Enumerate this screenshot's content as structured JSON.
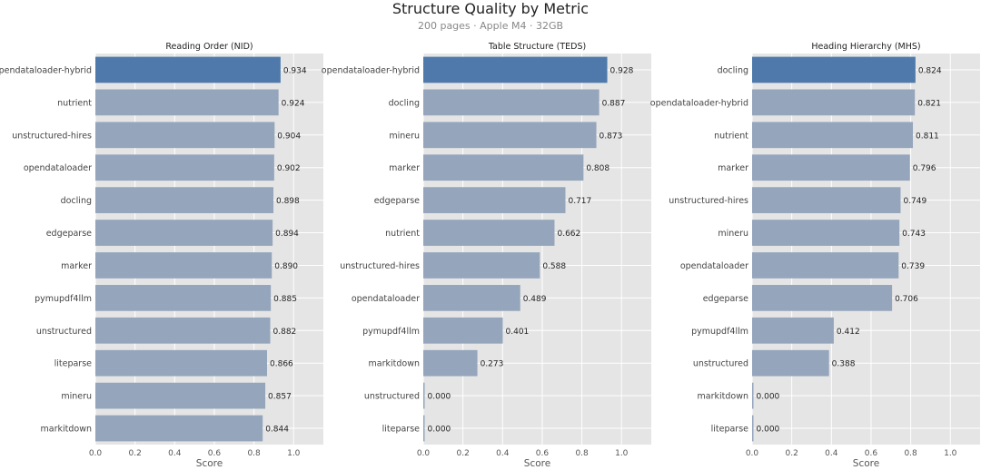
{
  "figure": {
    "title": "Structure Quality by Metric",
    "subtitle": "200 pages · Apple M4 · 32GB"
  },
  "colors": {
    "highlight": "#4e79aa",
    "bar": "#95a5bc",
    "panel_background": "#e5e5e5",
    "grid": "#ffffff"
  },
  "chart_data": [
    {
      "type": "bar",
      "orientation": "horizontal",
      "title": "Reading Order (NID)",
      "xlabel": "Score",
      "xlim": [
        0,
        1.15
      ],
      "xticks": [
        "0.0",
        "0.2",
        "0.4",
        "0.6",
        "0.8",
        "1.0"
      ],
      "grid": true,
      "categories": [
        "opendataloader-hybrid",
        "nutrient",
        "unstructured-hires",
        "opendataloader",
        "docling",
        "edgeparse",
        "marker",
        "pymupdf4llm",
        "unstructured",
        "liteparse",
        "mineru",
        "markitdown"
      ],
      "values": [
        0.934,
        0.924,
        0.904,
        0.902,
        0.898,
        0.894,
        0.89,
        0.885,
        0.882,
        0.866,
        0.857,
        0.844
      ],
      "labels": [
        "0.934",
        "0.924",
        "0.904",
        "0.902",
        "0.898",
        "0.894",
        "0.890",
        "0.885",
        "0.882",
        "0.866",
        "0.857",
        "0.844"
      ],
      "highlight_index": 0
    },
    {
      "type": "bar",
      "orientation": "horizontal",
      "title": "Table Structure (TEDS)",
      "xlabel": "Score",
      "xlim": [
        0,
        1.15
      ],
      "xticks": [
        "0.0",
        "0.2",
        "0.4",
        "0.6",
        "0.8",
        "1.0"
      ],
      "grid": true,
      "categories": [
        "opendataloader-hybrid",
        "docling",
        "mineru",
        "marker",
        "edgeparse",
        "nutrient",
        "unstructured-hires",
        "opendataloader",
        "pymupdf4llm",
        "markitdown",
        "unstructured",
        "liteparse"
      ],
      "values": [
        0.928,
        0.887,
        0.873,
        0.808,
        0.717,
        0.662,
        0.588,
        0.489,
        0.401,
        0.273,
        0.0,
        0.0
      ],
      "labels": [
        "0.928",
        "0.887",
        "0.873",
        "0.808",
        "0.717",
        "0.662",
        "0.588",
        "0.489",
        "0.401",
        "0.273",
        "0.000",
        "0.000"
      ],
      "highlight_index": 0
    },
    {
      "type": "bar",
      "orientation": "horizontal",
      "title": "Heading Hierarchy (MHS)",
      "xlabel": "Score",
      "xlim": [
        0,
        1.15
      ],
      "xticks": [
        "0.0",
        "0.2",
        "0.4",
        "0.6",
        "0.8",
        "1.0"
      ],
      "grid": true,
      "categories": [
        "docling",
        "opendataloader-hybrid",
        "nutrient",
        "marker",
        "unstructured-hires",
        "mineru",
        "opendataloader",
        "edgeparse",
        "pymupdf4llm",
        "unstructured",
        "markitdown",
        "liteparse"
      ],
      "values": [
        0.824,
        0.821,
        0.811,
        0.796,
        0.749,
        0.743,
        0.739,
        0.706,
        0.412,
        0.388,
        0.0,
        0.0
      ],
      "labels": [
        "0.824",
        "0.821",
        "0.811",
        "0.796",
        "0.749",
        "0.743",
        "0.739",
        "0.706",
        "0.412",
        "0.388",
        "0.000",
        "0.000"
      ],
      "highlight_index": 0
    }
  ]
}
